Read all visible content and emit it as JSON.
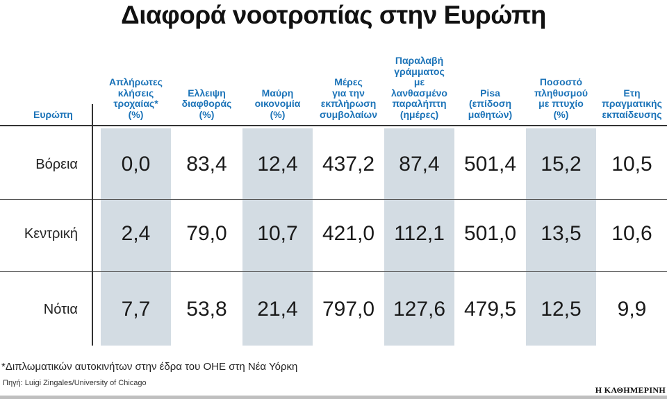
{
  "chart_data": {
    "type": "table",
    "title": "Διαφορά νοοτροπίας στην Ευρώπη",
    "row_header": "Ευρώπη",
    "columns": [
      "Απλήρωτες\nκλήσεις\nτροχαίας*\n(%)",
      "Ελλειψη\nδιαφθοράς\n(%)",
      "Μαύρη\nοικονομία\n(%)",
      "Μέρες\nγια την\nεκπλήρωση\nσυμβολαίων",
      "Παραλαβή\nγράμματος\nμε\nλανθασμένο\nπαραλήπτη\n(ημέρες)",
      "Pisa\n(επίδοση\nμαθητών)",
      "Ποσοστό\nπληθυσμού\nμε πτυχίο\n(%)",
      "Ετη\nπραγματικής\nεκπαίδευσης"
    ],
    "rows": [
      {
        "label": "Βόρεια",
        "values": [
          "0,0",
          "83,4",
          "12,4",
          "437,2",
          "87,4",
          "501,4",
          "15,2",
          "10,5"
        ]
      },
      {
        "label": "Κεντρική",
        "values": [
          "2,4",
          "79,0",
          "10,7",
          "421,0",
          "112,1",
          "501,0",
          "13,5",
          "10,6"
        ]
      },
      {
        "label": "Νότια",
        "values": [
          "7,7",
          "53,8",
          "21,4",
          "797,0",
          "127,6",
          "479,5",
          "12,5",
          "9,9"
        ]
      }
    ],
    "shaded_columns": [
      0,
      2,
      4,
      6
    ],
    "band_color": "#d3dce3",
    "header_color": "#1b73b8"
  },
  "footnote": "*Διπλωματικών αυτοκινήτων στην έδρα του ΟΗΕ στη Νέα Υόρκη",
  "source": "Πηγή: Luigi Zingales/University of Chicago",
  "brand": "Η ΚΑΘΗΜΕΡΙΝΗ"
}
